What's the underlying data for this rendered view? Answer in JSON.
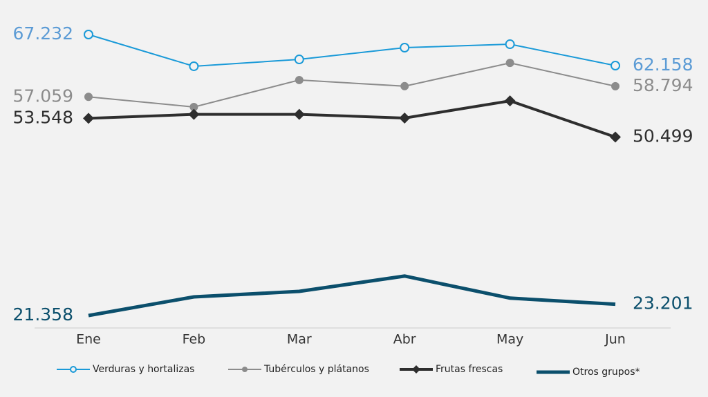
{
  "chart_data": {
    "type": "line",
    "categories": [
      "Ene",
      "Feb",
      "Mar",
      "Abr",
      "May",
      "Jun"
    ],
    "series": [
      {
        "name": "Verduras y hortalizas",
        "color": "#1a9ad8",
        "label_color": "#5b9bd5",
        "marker": "circle-open",
        "width": 2,
        "values": [
          67.232,
          62.05,
          63.17,
          65.09,
          65.65,
          62.158
        ],
        "value_labels": [
          "67.232",
          null,
          null,
          null,
          null,
          "62.158"
        ]
      },
      {
        "name": "Tubérculos y plátanos",
        "color": "#8c8c8c",
        "label_color": "#8c8c8c",
        "marker": "circle",
        "width": 2,
        "values": [
          57.059,
          55.4,
          59.8,
          58.8,
          62.6,
          58.794
        ],
        "value_labels": [
          "57.059",
          null,
          null,
          null,
          null,
          "58.794"
        ]
      },
      {
        "name": "Frutas frescas",
        "color": "#2e2e2e",
        "label_color": "#2e2e2e",
        "marker": "diamond",
        "width": 4,
        "values": [
          53.548,
          54.2,
          54.2,
          53.6,
          56.4,
          50.499
        ],
        "value_labels": [
          "53.548",
          null,
          null,
          null,
          null,
          "50.499"
        ]
      },
      {
        "name": "Otros grupos*",
        "color": "#0b4f6c",
        "label_color": "#0b4f6c",
        "marker": "none",
        "width": 5,
        "values": [
          21.358,
          24.4,
          25.3,
          27.8,
          24.2,
          23.201
        ],
        "value_labels": [
          "21.358",
          null,
          null,
          null,
          null,
          "23.201"
        ]
      }
    ]
  }
}
